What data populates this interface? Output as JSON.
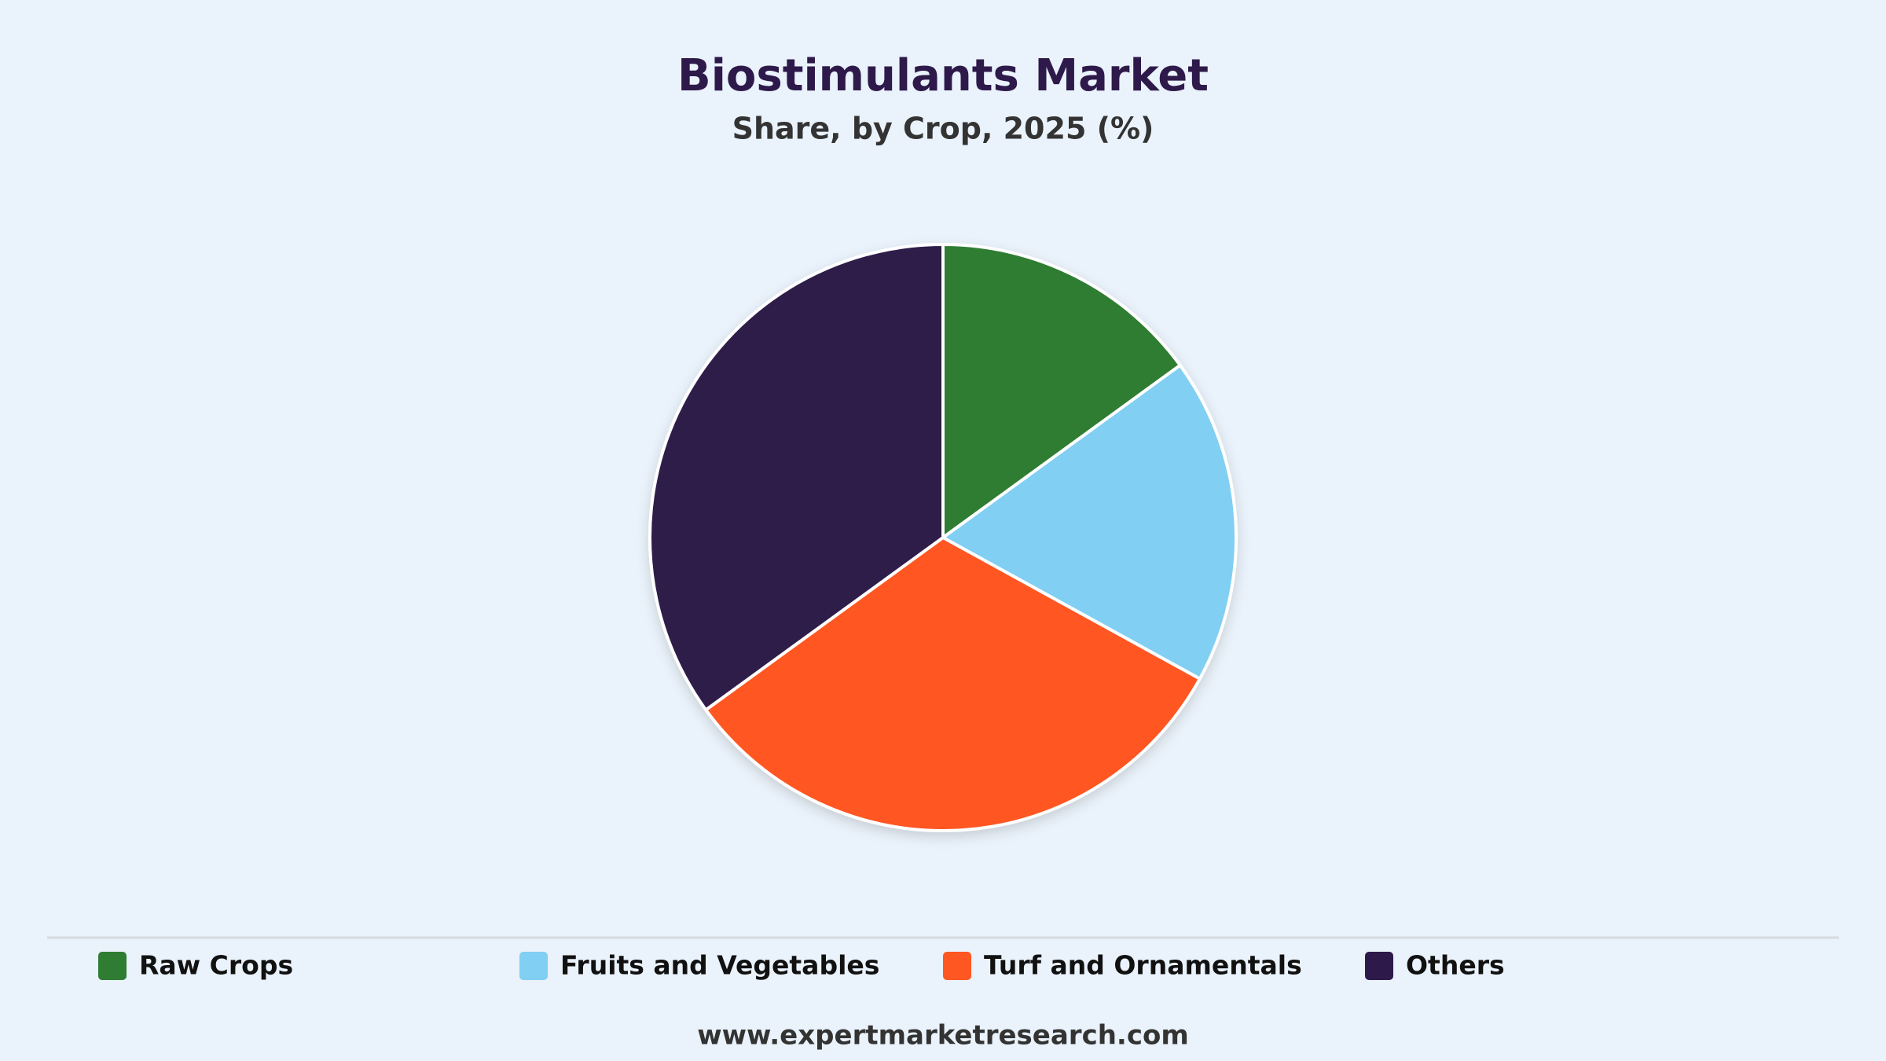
{
  "chart_data": {
    "type": "pie",
    "title": "Biostimulants Market",
    "subtitle": "Share, by Crop, 2025 (%)",
    "categories": [
      "Raw Crops",
      "Fruits and Vegetables",
      "Turf and Ornamentals",
      "Others"
    ],
    "values": [
      15,
      18,
      32,
      35
    ],
    "colors": [
      "#2e7d32",
      "#81cff2",
      "#ff5722",
      "#2e1a4a"
    ]
  },
  "footer": "www.expertmarketresearch.com"
}
